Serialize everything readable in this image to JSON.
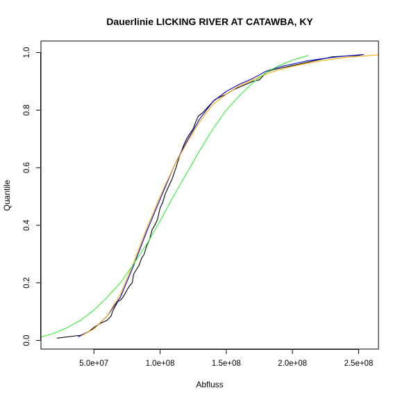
{
  "chart_data": {
    "type": "line",
    "title": "Dauerlinie LICKING RIVER AT CATAWBA, KY",
    "xlabel": "Abfluss",
    "ylabel": "Quantile",
    "xlim": [
      10000000,
      265000000
    ],
    "ylim": [
      -0.03,
      1.04
    ],
    "x_ticks": [
      50000000,
      100000000,
      150000000,
      200000000,
      250000000
    ],
    "x_tick_labels": [
      "5.0e+07",
      "1.0e+08",
      "1.5e+08",
      "2.0e+08",
      "2.5e+08"
    ],
    "y_ticks": [
      0.0,
      0.2,
      0.4,
      0.6,
      0.8,
      1.0
    ],
    "y_tick_labels": [
      "0.0",
      "0.2",
      "0.4",
      "0.6",
      "0.8",
      "1.0"
    ],
    "series": [
      {
        "color": "#000000",
        "points": [
          [
            22000000,
            0.008
          ],
          [
            40000000,
            0.018
          ],
          [
            46000000,
            0.03
          ],
          [
            50000000,
            0.045
          ],
          [
            55000000,
            0.06
          ],
          [
            60000000,
            0.07
          ],
          [
            63000000,
            0.085
          ],
          [
            64000000,
            0.1
          ],
          [
            68000000,
            0.135
          ],
          [
            70000000,
            0.14
          ],
          [
            72000000,
            0.15
          ],
          [
            75000000,
            0.175
          ],
          [
            77000000,
            0.19
          ],
          [
            79000000,
            0.2
          ],
          [
            80000000,
            0.23
          ],
          [
            82000000,
            0.245
          ],
          [
            84000000,
            0.26
          ],
          [
            86000000,
            0.285
          ],
          [
            88000000,
            0.3
          ],
          [
            90000000,
            0.33
          ],
          [
            92000000,
            0.35
          ],
          [
            94000000,
            0.385
          ],
          [
            96000000,
            0.4
          ],
          [
            98000000,
            0.42
          ],
          [
            100000000,
            0.46
          ],
          [
            102000000,
            0.48
          ],
          [
            104000000,
            0.51
          ],
          [
            106000000,
            0.53
          ],
          [
            109000000,
            0.56
          ],
          [
            112000000,
            0.6
          ],
          [
            114000000,
            0.63
          ],
          [
            116000000,
            0.655
          ],
          [
            118000000,
            0.68
          ],
          [
            120000000,
            0.7
          ],
          [
            122000000,
            0.715
          ],
          [
            125000000,
            0.735
          ],
          [
            127000000,
            0.76
          ],
          [
            129000000,
            0.78
          ],
          [
            132000000,
            0.79
          ],
          [
            135000000,
            0.805
          ],
          [
            138000000,
            0.82
          ],
          [
            141000000,
            0.835
          ],
          [
            145000000,
            0.845
          ],
          [
            150000000,
            0.855
          ],
          [
            155000000,
            0.87
          ],
          [
            160000000,
            0.88
          ],
          [
            165000000,
            0.89
          ],
          [
            170000000,
            0.9
          ],
          [
            175000000,
            0.905
          ],
          [
            180000000,
            0.93
          ],
          [
            185000000,
            0.94
          ],
          [
            190000000,
            0.945
          ],
          [
            195000000,
            0.95
          ],
          [
            200000000,
            0.955
          ],
          [
            205000000,
            0.96
          ],
          [
            210000000,
            0.965
          ],
          [
            215000000,
            0.97
          ],
          [
            220000000,
            0.975
          ],
          [
            225000000,
            0.98
          ],
          [
            230000000,
            0.985
          ],
          [
            240000000,
            0.988
          ],
          [
            250000000,
            0.99
          ],
          [
            253000000,
            0.993
          ]
        ]
      },
      {
        "color": "#0000cd",
        "points": [
          [
            38000000,
            0.012
          ],
          [
            50000000,
            0.04
          ],
          [
            60000000,
            0.085
          ],
          [
            70000000,
            0.15
          ],
          [
            80000000,
            0.26
          ],
          [
            90000000,
            0.38
          ],
          [
            100000000,
            0.49
          ],
          [
            110000000,
            0.6
          ],
          [
            120000000,
            0.69
          ],
          [
            130000000,
            0.77
          ],
          [
            140000000,
            0.83
          ],
          [
            150000000,
            0.865
          ],
          [
            160000000,
            0.89
          ],
          [
            170000000,
            0.91
          ],
          [
            180000000,
            0.935
          ],
          [
            190000000,
            0.95
          ],
          [
            200000000,
            0.96
          ],
          [
            210000000,
            0.97
          ],
          [
            220000000,
            0.977
          ],
          [
            230000000,
            0.983
          ],
          [
            240000000,
            0.988
          ],
          [
            254000000,
            0.993
          ]
        ]
      },
      {
        "color": "#ffa500",
        "points": [
          [
            40000000,
            0.015
          ],
          [
            50000000,
            0.04
          ],
          [
            60000000,
            0.085
          ],
          [
            70000000,
            0.16
          ],
          [
            80000000,
            0.27
          ],
          [
            90000000,
            0.39
          ],
          [
            100000000,
            0.5
          ],
          [
            110000000,
            0.6
          ],
          [
            120000000,
            0.685
          ],
          [
            130000000,
            0.76
          ],
          [
            140000000,
            0.82
          ],
          [
            150000000,
            0.855
          ],
          [
            160000000,
            0.885
          ],
          [
            170000000,
            0.905
          ],
          [
            180000000,
            0.925
          ],
          [
            190000000,
            0.94
          ],
          [
            200000000,
            0.952
          ],
          [
            210000000,
            0.962
          ],
          [
            220000000,
            0.97
          ],
          [
            230000000,
            0.977
          ],
          [
            240000000,
            0.983
          ],
          [
            250000000,
            0.987
          ],
          [
            265000000,
            0.992
          ]
        ]
      },
      {
        "color": "#33ee33",
        "points": [
          [
            10000000,
            0.012
          ],
          [
            20000000,
            0.025
          ],
          [
            30000000,
            0.045
          ],
          [
            40000000,
            0.07
          ],
          [
            50000000,
            0.105
          ],
          [
            60000000,
            0.15
          ],
          [
            70000000,
            0.2
          ],
          [
            80000000,
            0.265
          ],
          [
            90000000,
            0.335
          ],
          [
            100000000,
            0.415
          ],
          [
            110000000,
            0.5
          ],
          [
            120000000,
            0.58
          ],
          [
            130000000,
            0.66
          ],
          [
            140000000,
            0.735
          ],
          [
            150000000,
            0.8
          ],
          [
            160000000,
            0.85
          ],
          [
            170000000,
            0.895
          ],
          [
            180000000,
            0.93
          ],
          [
            190000000,
            0.955
          ],
          [
            200000000,
            0.973
          ],
          [
            212000000,
            0.99
          ]
        ]
      }
    ]
  }
}
